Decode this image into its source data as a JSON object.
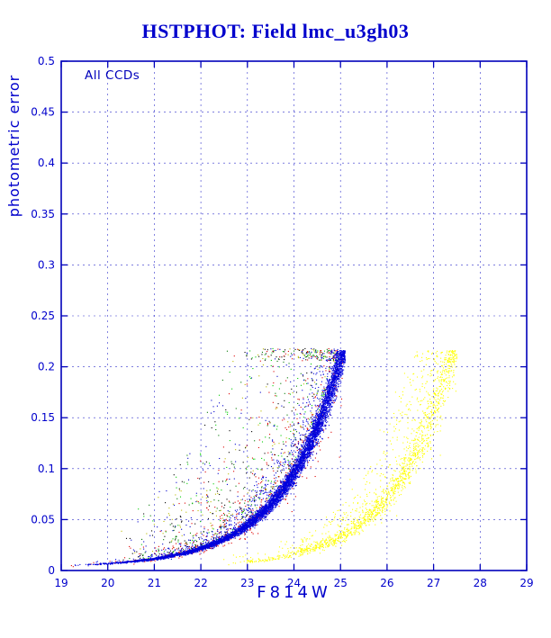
{
  "page": {
    "title": "HSTPHOT: Field lmc_u3gh03"
  },
  "chart_data": {
    "type": "scatter",
    "title": "HSTPHOT: Field lmc_u3gh03",
    "annotation": "All CCDs",
    "xlabel": "F814W",
    "ylabel": "photometric error",
    "xlim": [
      19,
      29
    ],
    "ylim": [
      0,
      0.5
    ],
    "xticks": [
      19,
      20,
      21,
      22,
      23,
      24,
      25,
      26,
      27,
      28,
      29
    ],
    "yticks": [
      0,
      0.05,
      0.1,
      0.15,
      0.2,
      0.25,
      0.3,
      0.35,
      0.4,
      0.45,
      0.5
    ],
    "grid": true,
    "grid_style": "dashed",
    "legend": "none",
    "frame_color": "#0000bb",
    "grid_color": "#3333cc",
    "text_color": "#0000cc",
    "background": "#ffffff",
    "seed": 1337,
    "description": "Photometric error vs F814W magnitude for all CCD chips; error rises exponentially toward faint magnitudes. Main WF-chip locus tops out near (25.0, 0.21); fainter PC/yellow-chip locus tops out near (27.4, 0.21); multicolor scatter cloud of outliers lies above the main locus between mag 20.5 and 25.",
    "series": [
      {
        "name": "outlier-cloud-all-chips",
        "kind": "cloud",
        "colors": [
          "#000000",
          "#dd0000",
          "#00cc00",
          "#0000cc",
          "#007700",
          "#bbbb00"
        ],
        "n": 1500,
        "x_min": 20.2,
        "x_max": 24.95,
        "x_skew": 0.55,
        "y_floor": 0.003,
        "y_amp": 0.205,
        "k": 0.8,
        "x_ref": 25.0,
        "spread_max": 1.9,
        "y_cap": 0.218
      },
      {
        "name": "red-chip-locus-fringe",
        "kind": "locus",
        "color": "#dd0000",
        "n": 500,
        "x_min": 19.0,
        "x_max": 25.05,
        "x_skew": 0.4,
        "y_floor": 0.003,
        "y_amp": 0.205,
        "k": 0.8,
        "x_ref": 25.0,
        "tight_sigma": 0.12,
        "spread_frac": 0.15,
        "spread_extra": 0.8,
        "y_cap": 0.216
      },
      {
        "name": "wf-chips-main-locus",
        "kind": "locus",
        "color": "#0000dd",
        "n": 6500,
        "x_min": 19.0,
        "x_max": 25.1,
        "x_skew": 0.38,
        "y_floor": 0.003,
        "y_amp": 0.205,
        "k": 0.8,
        "x_ref": 25.0,
        "tight_sigma": 0.055,
        "spread_frac": 0.08,
        "spread_extra": 0.5,
        "y_cap": 0.216
      },
      {
        "name": "pc-chip-yellow-locus",
        "kind": "locus",
        "color": "#ffff00",
        "n": 1700,
        "x_min": 22.4,
        "x_max": 27.5,
        "x_skew": 0.45,
        "y_floor": 0.002,
        "y_amp": 0.205,
        "k": 0.8,
        "x_ref": 27.35,
        "tight_sigma": 0.1,
        "spread_frac": 0.25,
        "spread_extra": 0.9,
        "y_cap": 0.216
      }
    ]
  }
}
